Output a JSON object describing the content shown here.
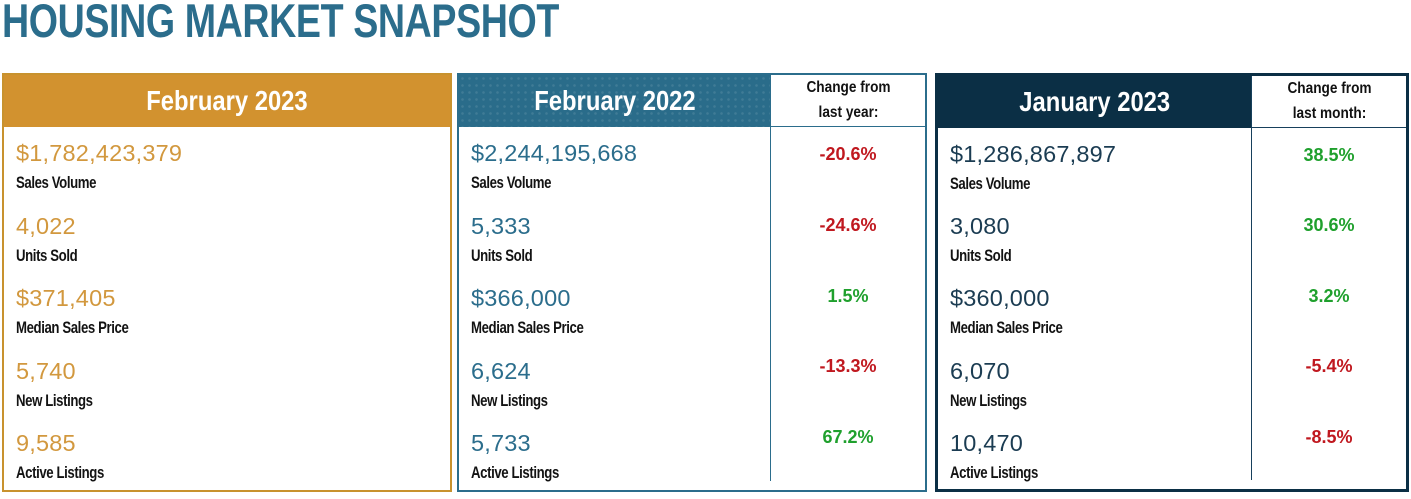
{
  "page": {
    "title": "HOUSING MARKET SNAPSHOT"
  },
  "colors": {
    "title_teal": "#2B6D8C",
    "gold_header": "#D2922F",
    "teal_header": "#2A6C8A",
    "navy_header": "#0B2F45",
    "positive_green": "#1FA02D",
    "negative_red": "#C0181F"
  },
  "panels": [
    {
      "header": "February 2023",
      "theme": "gold",
      "rows": [
        {
          "value": "$1,782,423,379",
          "label": "Sales Volume"
        },
        {
          "value": "4,022",
          "label": "Units Sold"
        },
        {
          "value": "$371,405",
          "label": "Median Sales Price"
        },
        {
          "value": "5,740",
          "label": "New Listings"
        },
        {
          "value": "9,585",
          "label": "Active Listings"
        }
      ]
    },
    {
      "header": "February 2022",
      "theme": "teal",
      "change_header": "Change from last year:",
      "rows": [
        {
          "value": "$2,244,195,668",
          "label": "Sales Volume",
          "change": "-20.6%",
          "direction": "down"
        },
        {
          "value": "5,333",
          "label": "Units Sold",
          "change": "-24.6%",
          "direction": "down"
        },
        {
          "value": "$366,000",
          "label": "Median Sales Price",
          "change": "1.5%",
          "direction": "up"
        },
        {
          "value": "6,624",
          "label": "New Listings",
          "change": "-13.3%",
          "direction": "down"
        },
        {
          "value": "5,733",
          "label": "Active Listings",
          "change": "67.2%",
          "direction": "up"
        }
      ]
    },
    {
      "header": "January 2023",
      "theme": "navy",
      "change_header": "Change from last month:",
      "rows": [
        {
          "value": "$1,286,867,897",
          "label": "Sales Volume",
          "change": "38.5%",
          "direction": "up"
        },
        {
          "value": "3,080",
          "label": "Units Sold",
          "change": "30.6%",
          "direction": "up"
        },
        {
          "value": "$360,000",
          "label": "Median Sales Price",
          "change": "3.2%",
          "direction": "up"
        },
        {
          "value": "6,070",
          "label": "New Listings",
          "change": "-5.4%",
          "direction": "down"
        },
        {
          "value": "10,470",
          "label": "Active Listings",
          "change": "-8.5%",
          "direction": "down"
        }
      ]
    }
  ],
  "chart_data": {
    "type": "table",
    "title": "HOUSING MARKET SNAPSHOT",
    "metrics": [
      "Sales Volume",
      "Units Sold",
      "Median Sales Price",
      "New Listings",
      "Active Listings"
    ],
    "columns": [
      "February 2023",
      "February 2022",
      "Change from last year",
      "January 2023",
      "Change from last month"
    ],
    "february_2023": {
      "sales_volume": 1782423379,
      "units_sold": 4022,
      "median_sales_price": 371405,
      "new_listings": 5740,
      "active_listings": 9585
    },
    "february_2022": {
      "sales_volume": 2244195668,
      "units_sold": 5333,
      "median_sales_price": 366000,
      "new_listings": 6624,
      "active_listings": 5733
    },
    "change_from_last_year_pct": {
      "sales_volume": -20.6,
      "units_sold": -24.6,
      "median_sales_price": 1.5,
      "new_listings": -13.3,
      "active_listings": 67.2
    },
    "january_2023": {
      "sales_volume": 1286867897,
      "units_sold": 3080,
      "median_sales_price": 360000,
      "new_listings": 6070,
      "active_listings": 10470
    },
    "change_from_last_month_pct": {
      "sales_volume": 38.5,
      "units_sold": 30.6,
      "median_sales_price": 3.2,
      "new_listings": -5.4,
      "active_listings": -8.5
    }
  }
}
